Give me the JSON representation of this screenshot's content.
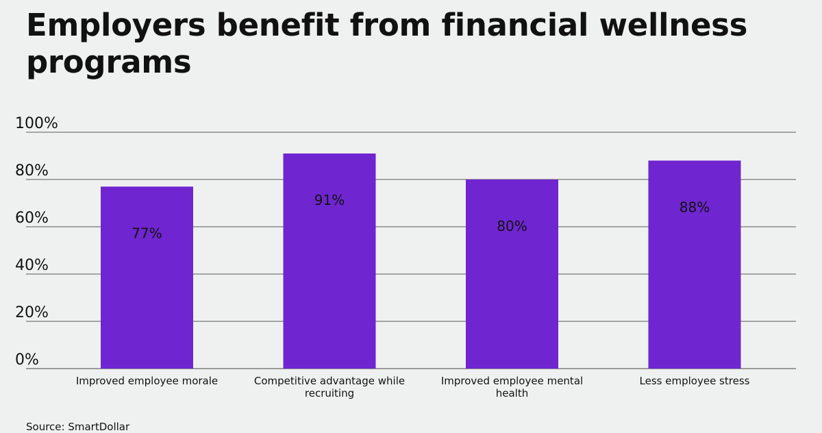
{
  "chart_data": {
    "type": "bar",
    "title": "Employers benefit from financial wellness programs",
    "categories": [
      [
        "Improved employee morale"
      ],
      [
        "Competitive advantage while",
        "recruiting"
      ],
      [
        "Improved employee mental",
        "health"
      ],
      [
        "Less employee stress"
      ]
    ],
    "values": [
      77,
      91,
      80,
      88
    ],
    "data_labels": [
      "77%",
      "91%",
      "80%",
      "88%"
    ],
    "yticks": [
      "0%",
      "20%",
      "40%",
      "60%",
      "80%",
      "100%"
    ],
    "ylim": [
      0,
      100
    ],
    "xlabel": "",
    "ylabel": "",
    "grid": true,
    "bar_color": "#6f25d0",
    "source": "Source: SmartDollar"
  }
}
